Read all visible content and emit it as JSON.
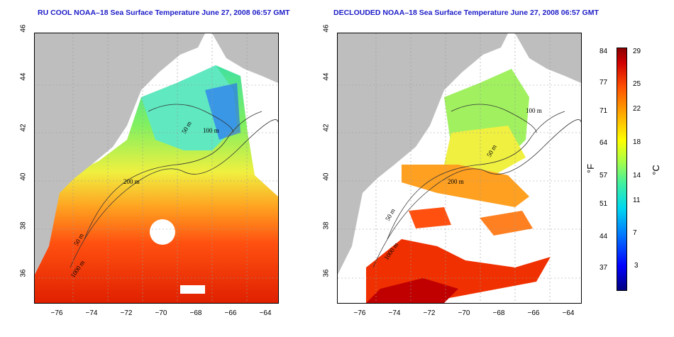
{
  "panels": [
    {
      "title": "RU COOL NOAA–18 Sea Surface Temperature June 27, 2008 06:57 GMT"
    },
    {
      "title": "DECLOUDED NOAA–18 Sea Surface Temperature June 27, 2008 06:57 GMT"
    }
  ],
  "axes": {
    "lat_ticks": [
      "46",
      "44",
      "42",
      "40",
      "38",
      "36"
    ],
    "lon_ticks": [
      "−76",
      "−74",
      "−72",
      "−70",
      "−68",
      "−66",
      "−64"
    ]
  },
  "contour_labels": {
    "m50": "50 m",
    "m100": "100 m",
    "m200": "200 m",
    "m1000": "1000 m"
  },
  "colorbar": {
    "fahrenheit_unit": "°F",
    "celsius_unit": "°C",
    "fahrenheit_ticks": [
      "84",
      "77",
      "71",
      "64",
      "57",
      "51",
      "44",
      "37"
    ],
    "celsius_ticks": [
      "29",
      "25",
      "22",
      "18",
      "14",
      "11",
      "7",
      "3"
    ]
  },
  "colors": {
    "land": "#bebebe",
    "cloud": "#ffffff",
    "title": "#1b1bc8",
    "contour": "#333333"
  }
}
